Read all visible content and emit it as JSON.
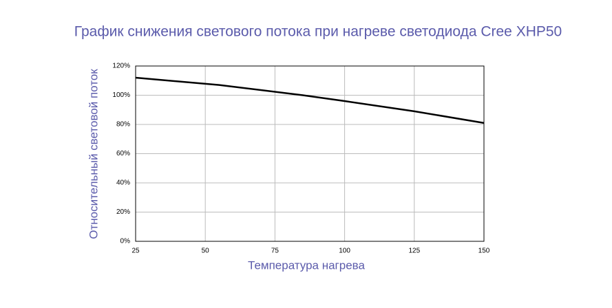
{
  "chart_data": {
    "type": "line",
    "title": "График снижения светового потока при нагреве светодиода Cree XHP50",
    "xlabel": "Температура нагрева",
    "ylabel": "Относительный световой поток",
    "x": [
      25,
      55,
      85,
      100,
      125,
      150
    ],
    "series": [
      {
        "color": "#000000",
        "values": [
          112,
          107,
          100,
          96,
          89,
          81
        ]
      }
    ],
    "xlim": [
      25,
      150
    ],
    "xticks": [
      25,
      50,
      75,
      100,
      125,
      150
    ],
    "ylim": [
      0,
      120
    ],
    "yticks": [
      {
        "value": 0,
        "label": "0%"
      },
      {
        "value": 20,
        "label": "20%"
      },
      {
        "value": 40,
        "label": "40%"
      },
      {
        "value": 60,
        "label": "60%"
      },
      {
        "value": 80,
        "label": "80%"
      },
      {
        "value": 100,
        "label": "100%"
      },
      {
        "value": 120,
        "label": "120%"
      }
    ],
    "grid": true
  }
}
